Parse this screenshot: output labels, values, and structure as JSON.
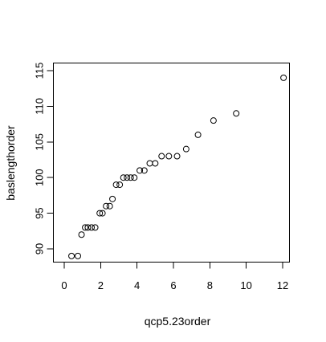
{
  "chart_data": {
    "type": "scatter",
    "title": "",
    "xlabel": "qcp5.23order",
    "ylabel": "baslengthorder",
    "xlim": [
      0,
      12.3
    ],
    "ylim": [
      88.4,
      115.2
    ],
    "x_ticks": [
      0,
      2,
      4,
      6,
      8,
      10,
      12
    ],
    "y_ticks": [
      90,
      95,
      100,
      105,
      110,
      115
    ],
    "grid": false,
    "legend": "none",
    "points": [
      {
        "x": 0.4,
        "y": 89
      },
      {
        "x": 0.75,
        "y": 89
      },
      {
        "x": 0.95,
        "y": 92
      },
      {
        "x": 1.15,
        "y": 93
      },
      {
        "x": 1.3,
        "y": 93
      },
      {
        "x": 1.5,
        "y": 93
      },
      {
        "x": 1.7,
        "y": 93
      },
      {
        "x": 1.95,
        "y": 95
      },
      {
        "x": 2.1,
        "y": 95
      },
      {
        "x": 2.3,
        "y": 96
      },
      {
        "x": 2.5,
        "y": 96
      },
      {
        "x": 2.65,
        "y": 97
      },
      {
        "x": 2.85,
        "y": 99
      },
      {
        "x": 3.05,
        "y": 99
      },
      {
        "x": 3.25,
        "y": 100
      },
      {
        "x": 3.45,
        "y": 100
      },
      {
        "x": 3.65,
        "y": 100
      },
      {
        "x": 3.85,
        "y": 100
      },
      {
        "x": 4.15,
        "y": 101
      },
      {
        "x": 4.4,
        "y": 101
      },
      {
        "x": 4.7,
        "y": 102
      },
      {
        "x": 5.0,
        "y": 102
      },
      {
        "x": 5.35,
        "y": 103
      },
      {
        "x": 5.75,
        "y": 103
      },
      {
        "x": 6.2,
        "y": 103
      },
      {
        "x": 6.7,
        "y": 104
      },
      {
        "x": 7.35,
        "y": 106
      },
      {
        "x": 8.2,
        "y": 108
      },
      {
        "x": 9.45,
        "y": 109
      },
      {
        "x": 12.05,
        "y": 114
      }
    ]
  }
}
